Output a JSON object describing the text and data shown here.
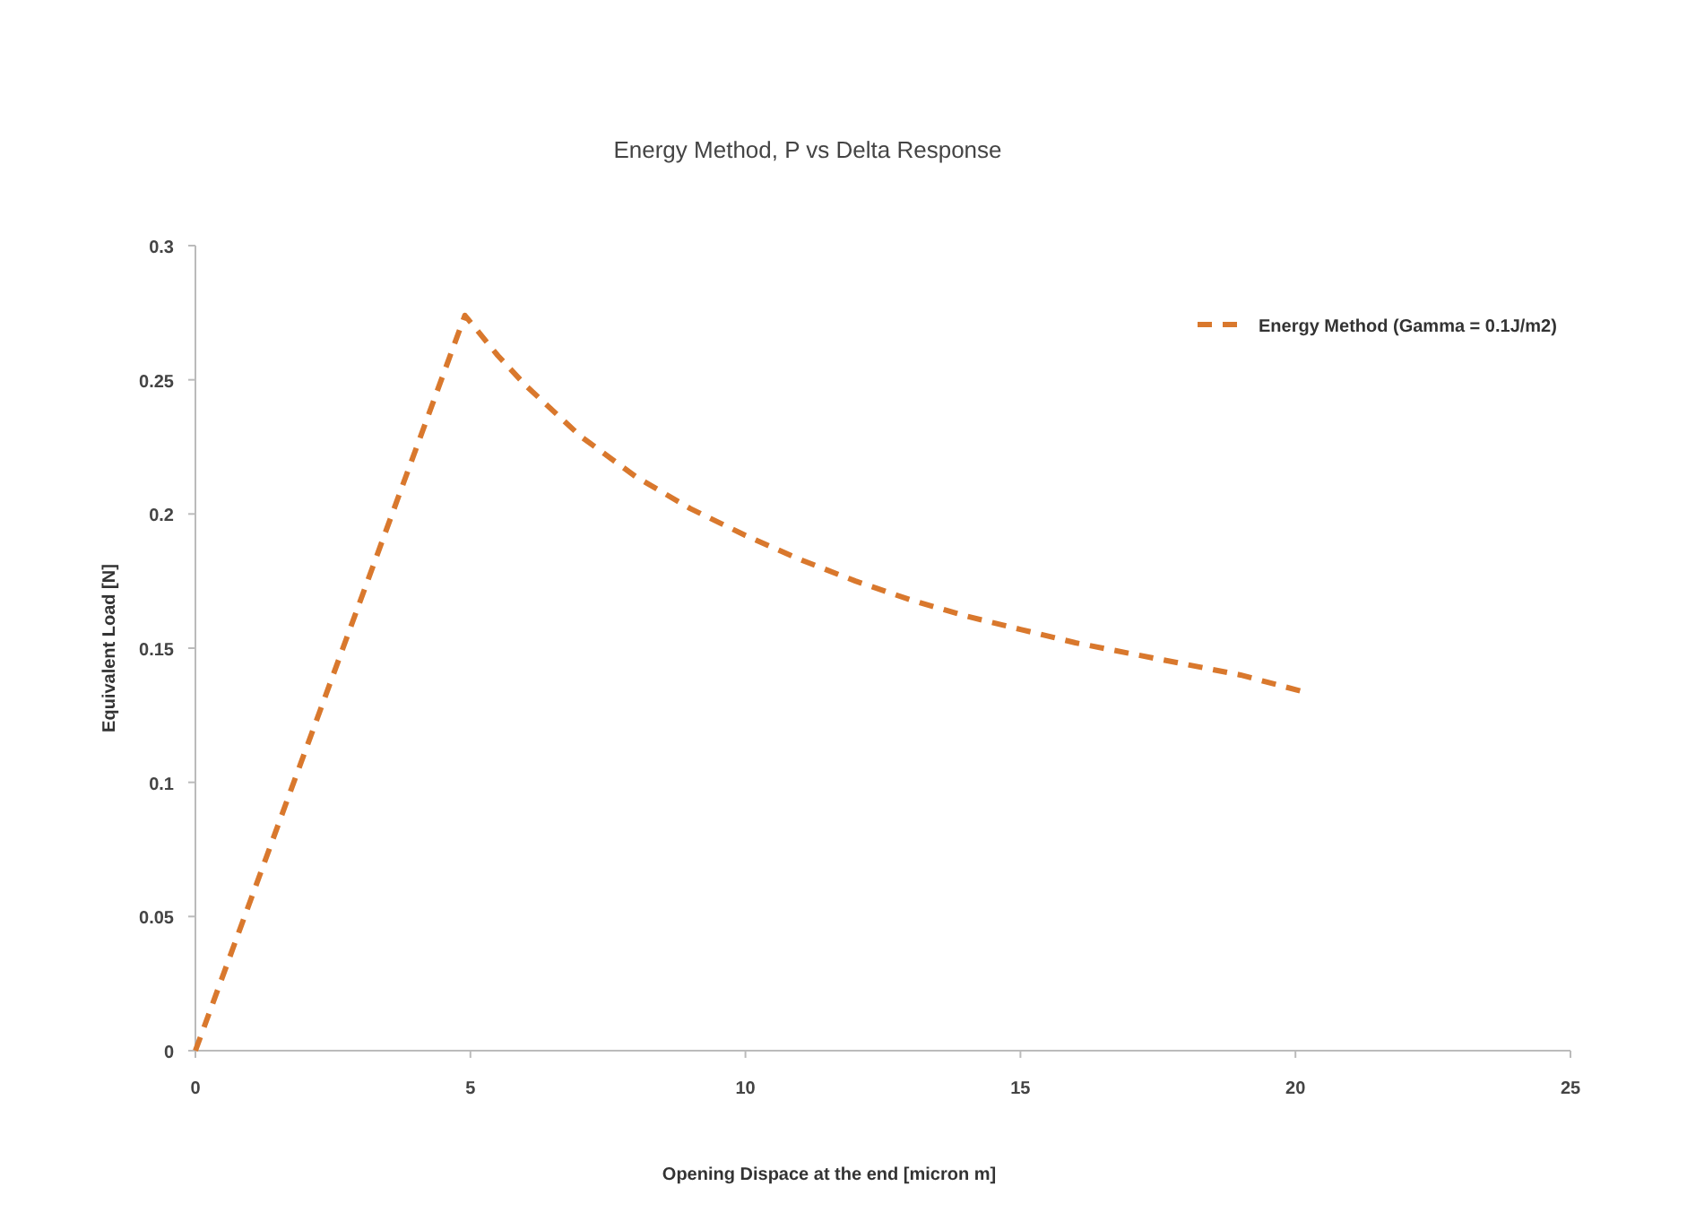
{
  "chart_data": {
    "type": "line",
    "title": "Energy Method, P vs Delta Response",
    "xlabel": "Opening Dispace at the  end [micron m]",
    "ylabel": "Equivalent Load [N]",
    "xlim": [
      0,
      25
    ],
    "xticks": [
      0,
      5,
      10,
      15,
      20,
      25
    ],
    "ylim": [
      0,
      0.3
    ],
    "yticks": [
      0,
      0.05,
      0.1,
      0.15,
      0.2,
      0.25,
      0.3
    ],
    "grid": false,
    "legend": "top right",
    "line_style": "dashed",
    "marker": "none",
    "series": [
      {
        "name": "Energy Method (Gamma = 0.1J/m2)",
        "color": "#d9782d",
        "x": [
          0,
          4.9,
          5.5,
          6,
          7,
          8,
          9,
          10,
          11,
          12,
          13,
          14,
          15,
          16,
          17,
          18,
          19,
          20.1
        ],
        "values": [
          0,
          0.274,
          0.259,
          0.248,
          0.229,
          0.214,
          0.202,
          0.192,
          0.183,
          0.175,
          0.168,
          0.162,
          0.157,
          0.152,
          0.148,
          0.144,
          0.14,
          0.134
        ]
      }
    ]
  }
}
